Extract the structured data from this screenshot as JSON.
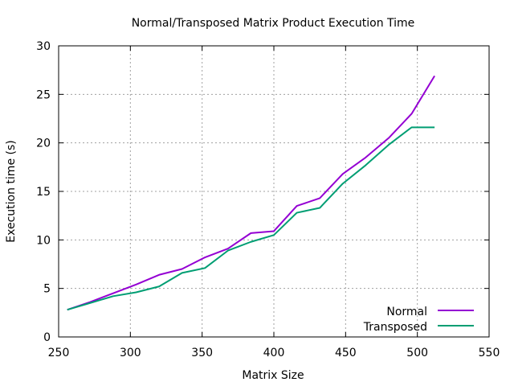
{
  "chart_data": {
    "type": "line",
    "title": "Normal/Transposed Matrix Product Execution Time",
    "xlabel": "Matrix Size",
    "ylabel": "Execution time (s)",
    "xlim": [
      250,
      550
    ],
    "ylim": [
      0,
      30
    ],
    "xticks": [
      250,
      300,
      350,
      400,
      450,
      500,
      550
    ],
    "yticks": [
      0,
      5,
      10,
      15,
      20,
      25,
      30
    ],
    "grid": true,
    "legend_position": "bottom-right",
    "series": [
      {
        "name": "Normal",
        "color": "#9400d3",
        "x": [
          256,
          272,
          288,
          304,
          320,
          336,
          352,
          368,
          384,
          400,
          416,
          432,
          448,
          464,
          480,
          496,
          512
        ],
        "y": [
          2.8,
          3.6,
          4.5,
          5.4,
          6.4,
          7.0,
          8.2,
          9.1,
          10.7,
          10.9,
          13.5,
          14.3,
          16.8,
          18.5,
          20.5,
          23.0,
          26.9
        ]
      },
      {
        "name": "Transposed",
        "color": "#009e73",
        "x": [
          256,
          272,
          288,
          304,
          320,
          336,
          352,
          368,
          384,
          400,
          416,
          432,
          448,
          464,
          480,
          496,
          512
        ],
        "y": [
          2.8,
          3.5,
          4.2,
          4.6,
          5.2,
          6.6,
          7.1,
          8.9,
          9.8,
          10.5,
          12.8,
          13.3,
          15.8,
          17.7,
          19.8,
          21.6,
          21.6
        ]
      }
    ]
  }
}
